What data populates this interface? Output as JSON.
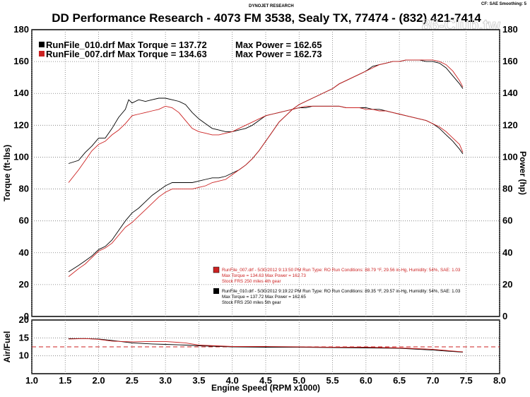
{
  "header": {
    "center_label": "DYNOJET RESEARCH",
    "right_label": "CF: SAE  Smoothing: 5",
    "title": "DD Performance Research - 4073 FM 3538, Sealy TX, 77474 - (832) 421-7414",
    "watermark": "86-Club.tw"
  },
  "legend": [
    {
      "name": "RunFile_010.drf",
      "text": "RunFile_010.drf Max Torque = 137.72",
      "power_text": "Max Power = 162.65",
      "color": "#000000"
    },
    {
      "name": "RunFile_007.drf",
      "text": "RunFile_007.drf Max Torque = 134.63",
      "power_text": "Max Power = 162.73",
      "color": "#cc2222"
    }
  ],
  "run_info": [
    {
      "color": "#cc2222",
      "line1": "RunFile_007.drf - 5/30/2012 9:13:50 PM  Run Type: RO  Run Conditions: 88.79 °F, 29.56 in-Hg,  Humidity:  54%, SAE: 1.03",
      "line2": "Max Torque = 134.63  Max Power = 162.73",
      "line3": "Stock FRS 250 miles 4th gear"
    },
    {
      "color": "#000000",
      "line1": "RunFile_010.drf - 5/30/2012 9:19:22 PM  Run Type: RO  Run Conditions: 89.35 °F, 29.57 in-Hg,  Humidity:  54%, SAE: 1.03",
      "line2": "Max Torque = 137.72  Max Power = 162.65",
      "line3": "Stock FRS 250 miles 5th gear"
    }
  ],
  "chart_data": [
    {
      "type": "line",
      "xlabel": "",
      "ylabel": "Torque (ft-lbs)",
      "y2label": "Power (hp)",
      "xlim": [
        1.0,
        8.0
      ],
      "ylim": [
        0,
        180
      ],
      "y2lim": [
        0,
        180
      ],
      "xticks": [
        "1.0",
        "1.5",
        "2.0",
        "2.5",
        "3.0",
        "3.5",
        "4.0",
        "4.5",
        "5.0",
        "5.5",
        "6.0",
        "6.5",
        "7.0",
        "7.5",
        "8.0"
      ],
      "yticks": [
        "0",
        "20",
        "40",
        "60",
        "80",
        "100",
        "120",
        "140",
        "160",
        "180"
      ],
      "grid": true,
      "series": [
        {
          "name": "RunFile_010.drf Torque",
          "color": "#000000",
          "x": [
            1.55,
            1.7,
            1.8,
            1.9,
            2.0,
            2.1,
            2.2,
            2.3,
            2.4,
            2.45,
            2.5,
            2.6,
            2.7,
            2.8,
            2.9,
            3.0,
            3.1,
            3.2,
            3.3,
            3.4,
            3.5,
            3.6,
            3.7,
            3.8,
            3.9,
            4.0,
            4.1,
            4.2,
            4.3,
            4.4,
            4.5,
            4.6,
            4.7,
            4.8,
            4.9,
            5.0,
            5.1,
            5.2,
            5.3,
            5.4,
            5.5,
            5.6,
            5.7,
            5.8,
            5.9,
            6.0,
            6.1,
            6.2,
            6.3,
            6.4,
            6.5,
            6.6,
            6.7,
            6.8,
            6.9,
            7.0,
            7.1,
            7.2,
            7.3,
            7.4,
            7.45
          ],
          "y": [
            96,
            98,
            103,
            107,
            112,
            112,
            118,
            125,
            130,
            136,
            134,
            136,
            135,
            136,
            137,
            137,
            136,
            135,
            133,
            128,
            124,
            121,
            118,
            117,
            116,
            116,
            117,
            118,
            120,
            123,
            126,
            127,
            128,
            129,
            130,
            131,
            131,
            132,
            132,
            132,
            132,
            132,
            131,
            131,
            131,
            131,
            130,
            130,
            129,
            128,
            127,
            126,
            125,
            124,
            123,
            121,
            118,
            114,
            110,
            105,
            102
          ]
        },
        {
          "name": "RunFile_007.drf Torque",
          "color": "#cc2222",
          "x": [
            1.55,
            1.7,
            1.8,
            1.9,
            2.0,
            2.1,
            2.2,
            2.3,
            2.4,
            2.5,
            2.6,
            2.7,
            2.8,
            2.9,
            3.0,
            3.1,
            3.2,
            3.3,
            3.4,
            3.5,
            3.6,
            3.7,
            3.8,
            3.9,
            4.0,
            4.1,
            4.2,
            4.3,
            4.4,
            4.5,
            4.6,
            4.7,
            4.8,
            4.9,
            5.0,
            5.1,
            5.2,
            5.3,
            5.4,
            5.5,
            5.6,
            5.7,
            5.8,
            5.9,
            6.0,
            6.1,
            6.2,
            6.3,
            6.4,
            6.5,
            6.6,
            6.7,
            6.8,
            6.9,
            7.0,
            7.1,
            7.2,
            7.3,
            7.4,
            7.45
          ],
          "y": [
            84,
            92,
            98,
            104,
            108,
            110,
            114,
            117,
            121,
            126,
            127,
            128,
            129,
            130,
            132,
            131,
            128,
            123,
            118,
            116,
            115,
            114,
            114,
            115,
            116,
            118,
            120,
            122,
            124,
            126,
            127,
            128,
            129,
            130,
            131,
            132,
            132,
            132,
            132,
            132,
            132,
            131,
            131,
            131,
            130,
            130,
            129,
            129,
            128,
            127,
            126,
            125,
            124,
            123,
            121,
            119,
            116,
            112,
            108,
            103
          ]
        },
        {
          "name": "RunFile_010.drf Power",
          "color": "#000000",
          "x": [
            1.55,
            1.7,
            1.8,
            1.9,
            2.0,
            2.1,
            2.2,
            2.3,
            2.4,
            2.5,
            2.6,
            2.7,
            2.8,
            2.9,
            3.0,
            3.1,
            3.2,
            3.3,
            3.4,
            3.5,
            3.6,
            3.7,
            3.8,
            3.9,
            4.0,
            4.1,
            4.2,
            4.3,
            4.4,
            4.5,
            4.6,
            4.7,
            4.8,
            4.9,
            5.0,
            5.1,
            5.2,
            5.3,
            5.4,
            5.5,
            5.6,
            5.7,
            5.8,
            5.9,
            6.0,
            6.1,
            6.2,
            6.3,
            6.4,
            6.5,
            6.6,
            6.7,
            6.8,
            6.9,
            7.0,
            7.1,
            7.2,
            7.3,
            7.4,
            7.45
          ],
          "y": [
            28,
            32,
            35,
            38,
            42,
            44,
            48,
            54,
            60,
            65,
            68,
            72,
            76,
            79,
            82,
            84,
            84,
            84,
            84,
            85,
            86,
            87,
            87,
            88,
            90,
            92,
            95,
            99,
            104,
            110,
            116,
            122,
            126,
            130,
            133,
            135,
            137,
            139,
            141,
            143,
            146,
            148,
            150,
            152,
            154,
            157,
            158,
            159,
            160,
            160,
            161,
            161,
            161,
            160,
            160,
            159,
            156,
            151,
            146,
            143
          ]
        },
        {
          "name": "RunFile_007.drf Power",
          "color": "#cc2222",
          "x": [
            1.55,
            1.7,
            1.8,
            1.9,
            2.0,
            2.1,
            2.2,
            2.3,
            2.4,
            2.5,
            2.6,
            2.7,
            2.8,
            2.9,
            3.0,
            3.1,
            3.2,
            3.3,
            3.4,
            3.5,
            3.6,
            3.7,
            3.8,
            3.9,
            4.0,
            4.1,
            4.2,
            4.3,
            4.4,
            4.5,
            4.6,
            4.7,
            4.8,
            4.9,
            5.0,
            5.1,
            5.2,
            5.3,
            5.4,
            5.5,
            5.6,
            5.7,
            5.8,
            5.9,
            6.0,
            6.1,
            6.2,
            6.3,
            6.4,
            6.5,
            6.6,
            6.7,
            6.8,
            6.9,
            7.0,
            7.1,
            7.2,
            7.3,
            7.4,
            7.45
          ],
          "y": [
            25,
            30,
            33,
            37,
            41,
            43,
            46,
            51,
            56,
            59,
            63,
            67,
            71,
            75,
            78,
            80,
            80,
            80,
            80,
            81,
            82,
            84,
            85,
            86,
            89,
            92,
            95,
            99,
            104,
            110,
            116,
            122,
            126,
            130,
            133,
            135,
            137,
            139,
            141,
            143,
            146,
            148,
            150,
            152,
            154,
            156,
            158,
            159,
            160,
            160,
            161,
            161,
            161,
            161,
            161,
            160,
            158,
            154,
            148,
            144
          ]
        }
      ]
    },
    {
      "type": "line",
      "xlabel": "Engine Speed (RPM x1000)",
      "ylabel": "Air/Fuel",
      "xlim": [
        1.0,
        8.0
      ],
      "ylim": [
        5,
        20
      ],
      "yticks": [
        "20",
        "15",
        "10"
      ],
      "reference_line": 12.5,
      "grid": true,
      "series": [
        {
          "name": "RunFile_010.drf Air/Fuel",
          "color": "#000000",
          "x": [
            1.55,
            1.8,
            2.0,
            2.2,
            2.5,
            2.8,
            3.0,
            3.3,
            3.5,
            4.0,
            4.5,
            5.0,
            5.5,
            6.0,
            6.5,
            7.0,
            7.45
          ],
          "y": [
            14.8,
            14.8,
            14.7,
            14.3,
            13.6,
            13.3,
            13.2,
            13.0,
            12.8,
            12.5,
            12.4,
            12.4,
            12.3,
            12.2,
            12.1,
            11.6,
            11.0
          ]
        },
        {
          "name": "RunFile_007.drf Air/Fuel",
          "color": "#cc2222",
          "x": [
            1.55,
            1.8,
            2.0,
            2.2,
            2.5,
            2.8,
            3.0,
            3.3,
            3.5,
            4.0,
            4.5,
            5.0,
            5.5,
            6.0,
            6.5,
            7.0,
            7.45
          ],
          "y": [
            14.7,
            14.8,
            14.6,
            14.1,
            13.9,
            14.0,
            14.0,
            13.6,
            13.0,
            12.6,
            12.6,
            12.5,
            12.4,
            12.4,
            12.2,
            11.8,
            11.1
          ]
        }
      ]
    }
  ]
}
